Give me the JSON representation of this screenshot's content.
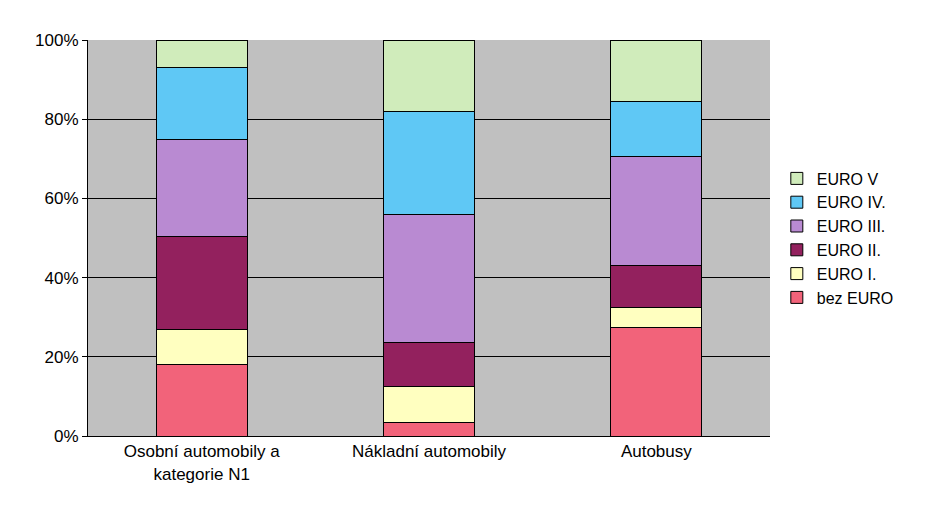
{
  "chart_data": {
    "type": "bar",
    "stacked": true,
    "grid": true,
    "legend": "right",
    "categories": [
      "Osobní automobily a\nkategorie N1",
      "Nákladní automobily",
      "Autobusy"
    ],
    "series": [
      {
        "name": "bez EURO",
        "color": "#f2637a",
        "values": [
          18,
          3.5,
          27.5
        ]
      },
      {
        "name": "EURO I.",
        "color": "#ffffc0",
        "values": [
          9,
          9,
          5
        ]
      },
      {
        "name": "EURO II.",
        "color": "#93215e",
        "values": [
          23.5,
          11,
          10.5
        ]
      },
      {
        "name": "EURO III.",
        "color": "#b98ad2",
        "values": [
          24.5,
          32.5,
          27.5
        ]
      },
      {
        "name": "EURO IV.",
        "color": "#5fc8f5",
        "values": [
          18,
          26,
          14
        ]
      },
      {
        "name": "EURO V",
        "color": "#d0ecbb",
        "values": [
          7,
          18,
          15.5
        ]
      }
    ],
    "ylim": [
      0,
      100
    ],
    "yticks": [
      {
        "value": 0,
        "label": "0%"
      },
      {
        "value": 20,
        "label": "20%"
      },
      {
        "value": 40,
        "label": "40%"
      },
      {
        "value": 60,
        "label": "60%"
      },
      {
        "value": 80,
        "label": "80%"
      },
      {
        "value": 100,
        "label": "100%"
      }
    ]
  }
}
